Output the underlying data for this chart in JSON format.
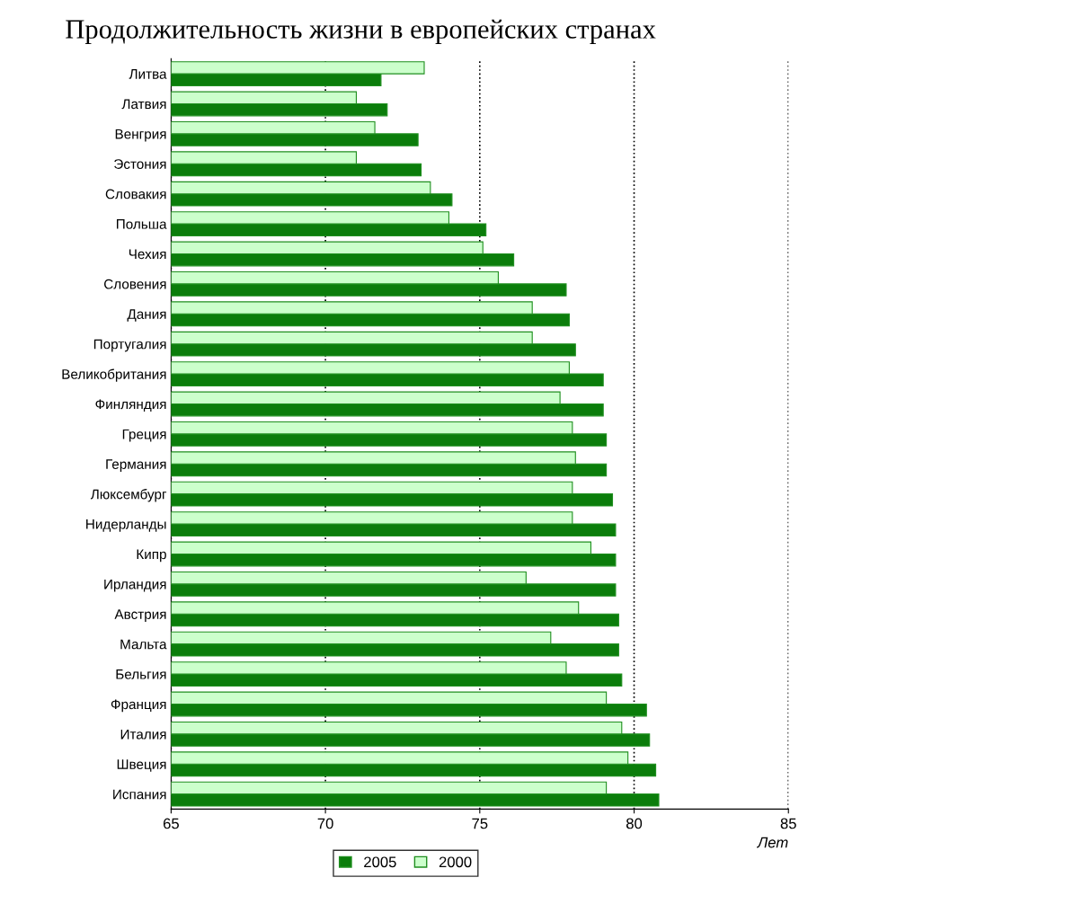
{
  "chart_data": {
    "type": "bar",
    "orientation": "horizontal",
    "title": "Продолжительность жизни в европейских странах",
    "xlabel": "Лет",
    "categories": [
      "Литва",
      "Латвия",
      "Венгрия",
      "Эстония",
      "Словакия",
      "Польша",
      "Чехия",
      "Словения",
      "Дания",
      "Португалия",
      "Великобритания",
      "Финляндия",
      "Греция",
      "Германия",
      "Люксембург",
      "Нидерланды",
      "Кипр",
      "Ирландия",
      "Австрия",
      "Мальта",
      "Бельгия",
      "Франция",
      "Италия",
      "Швеция",
      "Испания"
    ],
    "series": [
      {
        "name": "2005",
        "color": "#0b7d0b",
        "values": [
          71.8,
          72.0,
          73.0,
          73.1,
          74.1,
          75.2,
          76.1,
          77.8,
          77.9,
          78.1,
          79.0,
          79.0,
          79.1,
          79.1,
          79.3,
          79.4,
          79.4,
          79.4,
          79.5,
          79.5,
          79.6,
          80.4,
          80.5,
          80.7,
          80.8
        ]
      },
      {
        "name": "2000",
        "color": "#ccffcc",
        "values": [
          73.2,
          71.0,
          71.6,
          71.0,
          73.4,
          74.0,
          75.1,
          75.6,
          76.7,
          76.7,
          77.9,
          77.6,
          78.0,
          78.1,
          78.0,
          78.0,
          78.6,
          76.5,
          78.2,
          77.3,
          77.8,
          79.1,
          79.6,
          79.8,
          79.1
        ]
      }
    ],
    "xlim": [
      65,
      85
    ],
    "xticks": [
      65,
      70,
      75,
      80,
      85
    ],
    "grid": "x",
    "line_style": "dotted",
    "legend": "bottom"
  }
}
